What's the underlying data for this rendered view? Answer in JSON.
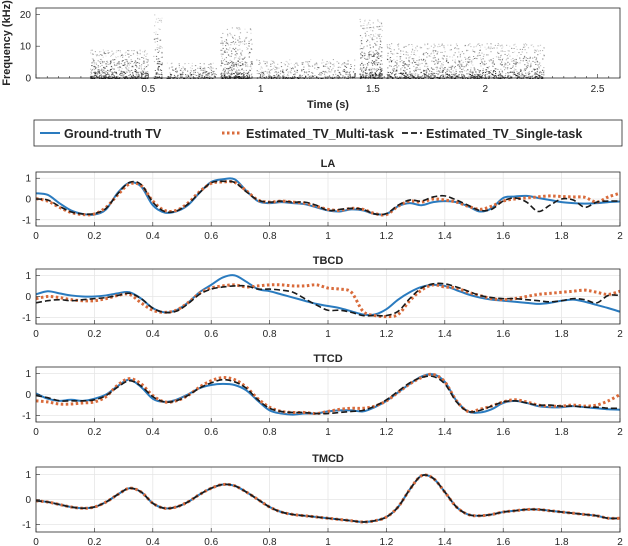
{
  "colors": {
    "ground_truth": "#2a7bbf",
    "multi_task": "#d96b3b",
    "single_task": "#1a1a1a",
    "spectrogram": "#000000",
    "grid": "#e6e6e6",
    "axis": "#262626"
  },
  "chart_data": [
    {
      "type": "heatmap",
      "title": "",
      "xlabel": "Time (s)",
      "ylabel": "Frequency (kHz)",
      "xlim": [
        0,
        2.6
      ],
      "ylim": [
        0,
        22
      ],
      "xticks": [
        0.5,
        1,
        1.5,
        2,
        2.5
      ],
      "yticks": [
        0,
        10,
        20
      ],
      "description_values": {
        "energy_regions": [
          {
            "t": [
              0.24,
              0.5
            ],
            "f": [
              0,
              9
            ],
            "level": 0.7
          },
          {
            "t": [
              0.52,
              0.56
            ],
            "f": [
              0,
              20
            ],
            "level": 0.35
          },
          {
            "t": [
              0.58,
              0.8
            ],
            "f": [
              0,
              5
            ],
            "level": 0.6
          },
          {
            "t": [
              0.82,
              0.96
            ],
            "f": [
              0,
              16
            ],
            "level": 0.5
          },
          {
            "t": [
              0.98,
              1.42
            ],
            "f": [
              0,
              6
            ],
            "level": 0.45
          },
          {
            "t": [
              1.44,
              1.54
            ],
            "f": [
              0,
              19
            ],
            "level": 0.5
          },
          {
            "t": [
              1.56,
              2.26
            ],
            "f": [
              0,
              11
            ],
            "level": 0.45
          }
        ]
      }
    },
    {
      "type": "line",
      "legend": {
        "placement": "top",
        "entries": [
          "Ground-truth TV",
          "Estimated_TV_Multi-task",
          "Estimated_TV_Single-task"
        ]
      }
    },
    {
      "type": "line",
      "title": "LA",
      "xlim": [
        0,
        2
      ],
      "ylim": [
        -1.3,
        1.3
      ],
      "xticks": [
        0,
        0.2,
        0.4,
        0.6,
        0.8,
        1,
        1.2,
        1.4,
        1.6,
        1.8,
        2
      ],
      "yticks": [
        -1,
        0,
        1
      ],
      "x": [
        0,
        0.04,
        0.08,
        0.12,
        0.16,
        0.2,
        0.24,
        0.28,
        0.32,
        0.36,
        0.4,
        0.44,
        0.48,
        0.52,
        0.56,
        0.6,
        0.64,
        0.68,
        0.72,
        0.76,
        0.8,
        0.84,
        0.88,
        0.92,
        0.96,
        1,
        1.04,
        1.08,
        1.12,
        1.16,
        1.2,
        1.24,
        1.28,
        1.32,
        1.36,
        1.4,
        1.44,
        1.48,
        1.52,
        1.56,
        1.6,
        1.64,
        1.68,
        1.72,
        1.76,
        1.8,
        1.84,
        1.88,
        1.92,
        1.96,
        2
      ],
      "series": [
        {
          "name": "Ground-truth TV",
          "values": [
            0.28,
            0.2,
            -0.2,
            -0.55,
            -0.72,
            -0.75,
            -0.5,
            0.3,
            0.78,
            0.6,
            -0.3,
            -0.65,
            -0.6,
            -0.3,
            0.3,
            0.82,
            0.95,
            0.95,
            0.4,
            -0.1,
            -0.2,
            -0.15,
            -0.2,
            -0.25,
            -0.4,
            -0.55,
            -0.6,
            -0.5,
            -0.55,
            -0.72,
            -0.72,
            -0.35,
            -0.2,
            -0.3,
            -0.15,
            -0.1,
            -0.15,
            -0.35,
            -0.6,
            -0.45,
            0.05,
            0.12,
            0.15,
            0.05,
            -0.05,
            -0.15,
            -0.2,
            -0.22,
            -0.2,
            -0.15,
            -0.12
          ]
        },
        {
          "name": "Estimated_TV_Multi-task",
          "values": [
            0.02,
            -0.1,
            -0.4,
            -0.65,
            -0.75,
            -0.72,
            -0.4,
            0.2,
            0.72,
            0.65,
            -0.1,
            -0.55,
            -0.55,
            -0.2,
            0.35,
            0.75,
            0.82,
            0.8,
            0.4,
            -0.05,
            -0.15,
            -0.1,
            -0.15,
            -0.2,
            -0.35,
            -0.5,
            -0.55,
            -0.45,
            -0.5,
            -0.7,
            -0.75,
            -0.35,
            -0.1,
            -0.15,
            0.0,
            -0.05,
            -0.15,
            -0.35,
            -0.5,
            -0.35,
            -0.1,
            0.0,
            0.05,
            0.1,
            0.15,
            0.12,
            0.1,
            0.08,
            -0.15,
            0.1,
            0.28
          ]
        },
        {
          "name": "Estimated_TV_Single-task",
          "values": [
            0.0,
            -0.05,
            -0.35,
            -0.62,
            -0.72,
            -0.7,
            -0.45,
            0.25,
            0.8,
            0.7,
            -0.15,
            -0.6,
            -0.58,
            -0.25,
            0.3,
            0.78,
            0.85,
            0.8,
            0.35,
            -0.05,
            -0.15,
            -0.1,
            -0.15,
            -0.15,
            -0.3,
            -0.55,
            -0.5,
            -0.45,
            -0.5,
            -0.72,
            -0.7,
            -0.3,
            -0.05,
            -0.1,
            0.1,
            0.15,
            -0.05,
            -0.3,
            -0.55,
            -0.5,
            -0.1,
            0.05,
            -0.15,
            -0.6,
            -0.3,
            0.0,
            -0.05,
            -0.4,
            -0.15,
            -0.1,
            -0.1
          ]
        }
      ]
    },
    {
      "type": "line",
      "title": "TBCD",
      "xlim": [
        0,
        2
      ],
      "ylim": [
        -1.3,
        1.3
      ],
      "xticks": [
        0,
        0.2,
        0.4,
        0.6,
        0.8,
        1,
        1.2,
        1.4,
        1.6,
        1.8,
        2
      ],
      "yticks": [
        -1,
        0,
        1
      ],
      "x": [
        0,
        0.04,
        0.08,
        0.12,
        0.16,
        0.2,
        0.24,
        0.28,
        0.32,
        0.36,
        0.4,
        0.44,
        0.48,
        0.52,
        0.56,
        0.6,
        0.64,
        0.68,
        0.72,
        0.76,
        0.8,
        0.84,
        0.88,
        0.92,
        0.96,
        1,
        1.04,
        1.08,
        1.12,
        1.16,
        1.2,
        1.24,
        1.28,
        1.32,
        1.36,
        1.4,
        1.44,
        1.48,
        1.52,
        1.56,
        1.6,
        1.64,
        1.68,
        1.72,
        1.76,
        1.8,
        1.84,
        1.88,
        1.92,
        1.96,
        2
      ],
      "series": [
        {
          "name": "Ground-truth TV",
          "values": [
            0.1,
            0.25,
            0.15,
            0.05,
            0.0,
            0.0,
            0.05,
            0.15,
            0.2,
            -0.1,
            -0.55,
            -0.75,
            -0.65,
            -0.3,
            0.2,
            0.55,
            0.9,
            1.0,
            0.7,
            0.35,
            0.25,
            0.1,
            -0.05,
            -0.2,
            -0.35,
            -0.45,
            -0.55,
            -0.7,
            -0.85,
            -0.85,
            -0.6,
            -0.15,
            0.2,
            0.45,
            0.55,
            0.5,
            0.3,
            0.1,
            -0.05,
            -0.15,
            -0.2,
            -0.25,
            -0.3,
            -0.35,
            -0.3,
            -0.2,
            -0.15,
            -0.25,
            -0.4,
            -0.55,
            -0.72
          ]
        },
        {
          "name": "Estimated_TV_Multi-task",
          "values": [
            -0.1,
            0.0,
            -0.05,
            -0.15,
            -0.2,
            -0.2,
            -0.1,
            0.05,
            0.1,
            -0.3,
            -0.65,
            -0.75,
            -0.65,
            -0.3,
            0.15,
            0.4,
            0.5,
            0.55,
            0.45,
            0.5,
            0.55,
            0.55,
            0.5,
            0.5,
            0.55,
            0.4,
            0.35,
            0.2,
            -0.7,
            -0.9,
            -0.95,
            -0.85,
            -0.2,
            0.3,
            0.55,
            0.45,
            0.4,
            0.2,
            0.05,
            -0.1,
            -0.15,
            -0.1,
            0.0,
            0.1,
            0.15,
            0.2,
            0.25,
            0.3,
            0.2,
            0.1,
            0.25
          ]
        },
        {
          "name": "Estimated_TV_Single-task",
          "values": [
            -0.3,
            -0.2,
            -0.15,
            -0.2,
            -0.15,
            -0.1,
            -0.05,
            0.05,
            0.15,
            -0.1,
            -0.55,
            -0.75,
            -0.7,
            -0.35,
            0.1,
            0.35,
            0.45,
            0.5,
            0.5,
            0.35,
            0.35,
            0.3,
            0.2,
            -0.1,
            -0.4,
            -0.65,
            -0.65,
            -0.75,
            -0.9,
            -0.9,
            -0.9,
            -0.7,
            -0.1,
            0.4,
            0.6,
            0.6,
            0.45,
            0.25,
            0.05,
            -0.05,
            -0.1,
            -0.1,
            -0.15,
            -0.2,
            -0.25,
            -0.2,
            -0.1,
            -0.15,
            -0.3,
            0.05,
            0.05
          ]
        }
      ]
    },
    {
      "type": "line",
      "title": "TTCD",
      "xlim": [
        0,
        2
      ],
      "ylim": [
        -1.3,
        1.3
      ],
      "xticks": [
        0,
        0.2,
        0.4,
        0.6,
        0.8,
        1,
        1.2,
        1.4,
        1.6,
        1.8,
        2
      ],
      "yticks": [
        -1,
        0,
        1
      ],
      "x": [
        0,
        0.04,
        0.08,
        0.12,
        0.16,
        0.2,
        0.24,
        0.28,
        0.32,
        0.36,
        0.4,
        0.44,
        0.48,
        0.52,
        0.56,
        0.6,
        0.64,
        0.68,
        0.72,
        0.76,
        0.8,
        0.84,
        0.88,
        0.92,
        0.96,
        1,
        1.04,
        1.08,
        1.12,
        1.16,
        1.2,
        1.24,
        1.28,
        1.32,
        1.36,
        1.4,
        1.44,
        1.48,
        1.52,
        1.56,
        1.6,
        1.64,
        1.68,
        1.72,
        1.76,
        1.8,
        1.84,
        1.88,
        1.92,
        1.96,
        2
      ],
      "series": [
        {
          "name": "Ground-truth TV",
          "values": [
            0.05,
            -0.2,
            -0.3,
            -0.25,
            -0.3,
            -0.2,
            0.0,
            0.4,
            0.7,
            0.35,
            -0.2,
            -0.35,
            -0.25,
            0.0,
            0.3,
            0.45,
            0.5,
            0.45,
            0.2,
            -0.3,
            -0.75,
            -0.9,
            -0.95,
            -0.9,
            -0.9,
            -0.8,
            -0.75,
            -0.75,
            -0.8,
            -0.6,
            -0.3,
            0.1,
            0.5,
            0.85,
            0.95,
            0.6,
            -0.3,
            -0.8,
            -0.85,
            -0.7,
            -0.4,
            -0.3,
            -0.4,
            -0.55,
            -0.6,
            -0.6,
            -0.55,
            -0.6,
            -0.65,
            -0.7,
            -0.72
          ]
        },
        {
          "name": "Estimated_TV_Multi-task",
          "values": [
            -0.3,
            -0.35,
            -0.45,
            -0.45,
            -0.4,
            -0.35,
            -0.1,
            0.45,
            0.75,
            0.5,
            -0.05,
            -0.35,
            -0.3,
            -0.05,
            0.35,
            0.65,
            0.8,
            0.7,
            0.35,
            -0.2,
            -0.6,
            -0.8,
            -0.85,
            -0.85,
            -0.9,
            -0.8,
            -0.7,
            -0.65,
            -0.65,
            -0.55,
            -0.3,
            0.1,
            0.5,
            0.8,
            0.95,
            0.6,
            -0.3,
            -0.8,
            -0.7,
            -0.55,
            -0.35,
            -0.25,
            -0.35,
            -0.5,
            -0.55,
            -0.55,
            -0.5,
            -0.55,
            -0.5,
            -0.3,
            0.0
          ]
        },
        {
          "name": "Estimated_TV_Single-task",
          "values": [
            -0.05,
            -0.15,
            -0.3,
            -0.3,
            -0.3,
            -0.25,
            -0.05,
            0.35,
            0.65,
            0.4,
            -0.1,
            -0.35,
            -0.3,
            -0.05,
            0.3,
            0.55,
            0.7,
            0.6,
            0.3,
            -0.25,
            -0.65,
            -0.8,
            -0.85,
            -0.85,
            -0.9,
            -0.9,
            -0.85,
            -0.8,
            -0.75,
            -0.55,
            -0.25,
            0.15,
            0.55,
            0.8,
            0.85,
            0.5,
            -0.35,
            -0.8,
            -0.75,
            -0.55,
            -0.35,
            -0.3,
            -0.4,
            -0.5,
            -0.5,
            -0.55,
            -0.55,
            -0.6,
            -0.6,
            -0.65,
            -0.65
          ]
        }
      ]
    },
    {
      "type": "line",
      "title": "TMCD",
      "xlim": [
        0,
        2
      ],
      "ylim": [
        -1.3,
        1.3
      ],
      "xticks": [
        0,
        0.2,
        0.4,
        0.6,
        0.8,
        1,
        1.2,
        1.4,
        1.6,
        1.8,
        2
      ],
      "yticks": [
        -1,
        0,
        1
      ],
      "x": [
        0,
        0.04,
        0.08,
        0.12,
        0.16,
        0.2,
        0.24,
        0.28,
        0.32,
        0.36,
        0.4,
        0.44,
        0.48,
        0.52,
        0.56,
        0.6,
        0.64,
        0.68,
        0.72,
        0.76,
        0.8,
        0.84,
        0.88,
        0.92,
        0.96,
        1,
        1.04,
        1.08,
        1.12,
        1.16,
        1.2,
        1.24,
        1.28,
        1.32,
        1.36,
        1.4,
        1.44,
        1.48,
        1.52,
        1.56,
        1.6,
        1.64,
        1.68,
        1.72,
        1.76,
        1.8,
        1.84,
        1.88,
        1.92,
        1.96,
        2
      ],
      "series": [
        {
          "name": "Ground-truth TV",
          "values": [
            -0.05,
            -0.1,
            -0.2,
            -0.3,
            -0.35,
            -0.3,
            -0.1,
            0.2,
            0.45,
            0.3,
            -0.15,
            -0.35,
            -0.3,
            -0.1,
            0.2,
            0.45,
            0.6,
            0.55,
            0.3,
            0.0,
            -0.3,
            -0.5,
            -0.6,
            -0.65,
            -0.7,
            -0.75,
            -0.8,
            -0.85,
            -0.9,
            -0.85,
            -0.7,
            -0.3,
            0.4,
            0.95,
            0.85,
            0.3,
            -0.3,
            -0.6,
            -0.65,
            -0.6,
            -0.5,
            -0.45,
            -0.4,
            -0.4,
            -0.45,
            -0.5,
            -0.55,
            -0.6,
            -0.65,
            -0.75,
            -0.75
          ]
        },
        {
          "name": "Estimated_TV_Multi-task",
          "values": [
            -0.05,
            -0.1,
            -0.2,
            -0.3,
            -0.35,
            -0.3,
            -0.1,
            0.2,
            0.45,
            0.3,
            -0.15,
            -0.35,
            -0.3,
            -0.1,
            0.2,
            0.45,
            0.6,
            0.55,
            0.3,
            0.0,
            -0.3,
            -0.5,
            -0.6,
            -0.65,
            -0.7,
            -0.75,
            -0.8,
            -0.85,
            -0.9,
            -0.85,
            -0.7,
            -0.3,
            0.4,
            0.95,
            0.85,
            0.3,
            -0.3,
            -0.6,
            -0.65,
            -0.6,
            -0.5,
            -0.45,
            -0.4,
            -0.4,
            -0.45,
            -0.5,
            -0.55,
            -0.6,
            -0.65,
            -0.75,
            -0.75
          ]
        },
        {
          "name": "Estimated_TV_Single-task",
          "values": [
            -0.05,
            -0.1,
            -0.2,
            -0.3,
            -0.35,
            -0.3,
            -0.1,
            0.2,
            0.45,
            0.3,
            -0.15,
            -0.35,
            -0.3,
            -0.1,
            0.2,
            0.45,
            0.6,
            0.55,
            0.3,
            0.0,
            -0.3,
            -0.5,
            -0.6,
            -0.65,
            -0.7,
            -0.75,
            -0.8,
            -0.85,
            -0.9,
            -0.85,
            -0.7,
            -0.3,
            0.4,
            0.95,
            0.85,
            0.3,
            -0.3,
            -0.6,
            -0.65,
            -0.6,
            -0.5,
            -0.45,
            -0.4,
            -0.4,
            -0.45,
            -0.5,
            -0.55,
            -0.6,
            -0.65,
            -0.75,
            -0.75
          ]
        }
      ]
    }
  ]
}
